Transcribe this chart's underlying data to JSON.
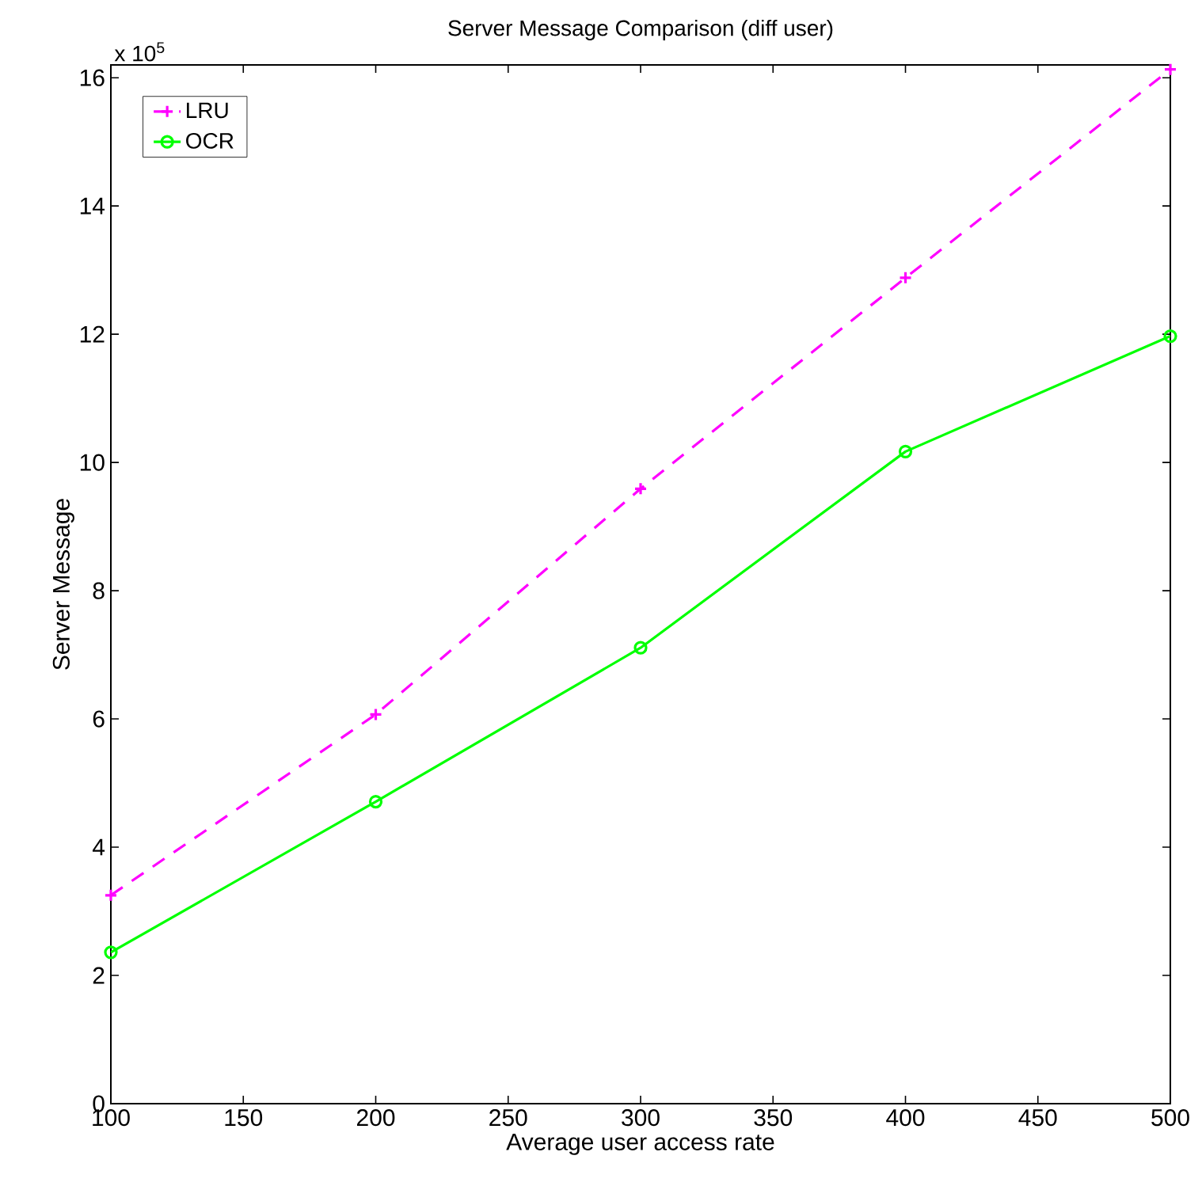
{
  "chart_data": {
    "type": "line",
    "title": "Server Message Comparison (diff user)",
    "xlabel": "Average user access rate",
    "ylabel": "Server Message",
    "annotations": [
      "x 10$^{5}$"
    ],
    "x": [
      100,
      200,
      300,
      400,
      500
    ],
    "series": [
      {
        "name": "LRU",
        "color": "#ff00ff",
        "marker": "cross",
        "line_style": "dashed",
        "values": [
          3.25,
          6.07,
          9.59,
          12.88,
          16.13
        ]
      },
      {
        "name": "OCR",
        "color": "#00ff00",
        "marker": "circle",
        "line_style": "solid",
        "values": [
          2.36,
          4.71,
          7.11,
          10.17,
          11.97
        ]
      }
    ],
    "xlim": [
      100,
      500
    ],
    "xticks": [
      100,
      150,
      200,
      250,
      300,
      350,
      400,
      450,
      500
    ],
    "ylim": [
      0,
      16.2
    ],
    "yticks": [
      0,
      2,
      4,
      6,
      8,
      10,
      12,
      14,
      16
    ],
    "grid": false,
    "legend": "top left"
  }
}
